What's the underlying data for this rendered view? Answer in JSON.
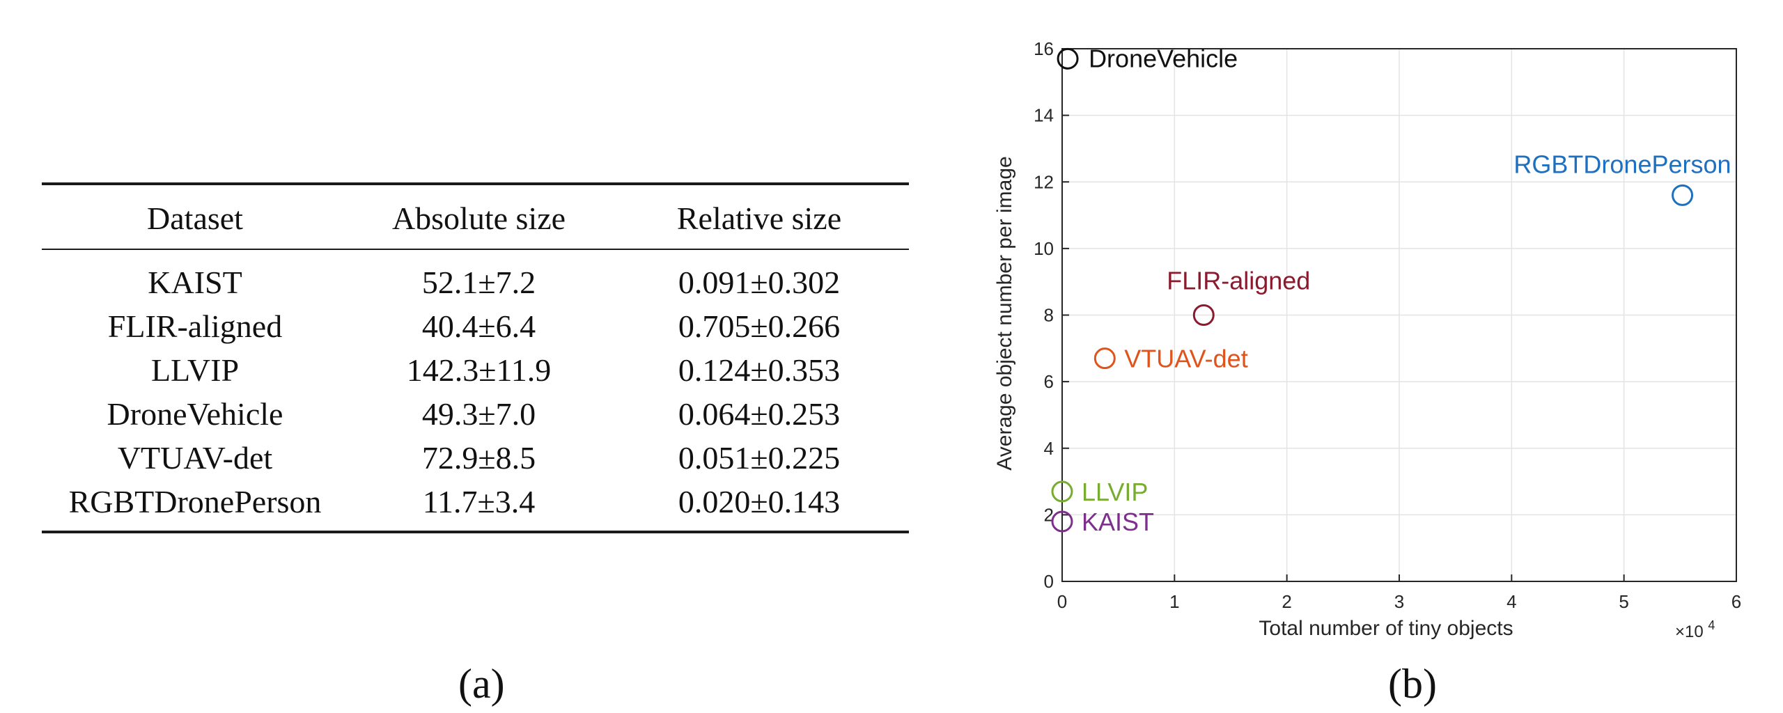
{
  "table": {
    "columns": [
      "Dataset",
      "Absolute size",
      "Relative size"
    ],
    "rows": [
      [
        "KAIST",
        "52.1±7.2",
        "0.091±0.302"
      ],
      [
        "FLIR-aligned",
        "40.4±6.4",
        "0.705±0.266"
      ],
      [
        "LLVIP",
        "142.3±11.9",
        "0.124±0.353"
      ],
      [
        "DroneVehicle",
        "49.3±7.0",
        "0.064±0.253"
      ],
      [
        "VTUAV-det",
        "72.9±8.5",
        "0.051±0.225"
      ],
      [
        "RGBTDronePerson",
        "11.7±3.4",
        "0.020±0.143"
      ]
    ]
  },
  "captions": {
    "a": "(a)",
    "b": "(b)"
  },
  "chart_data": {
    "type": "scatter",
    "xlabel": "Total number of tiny objects",
    "ylabel": "Average object number per image",
    "x_multiplier_label": "×10",
    "x_multiplier_exponent": "4",
    "xlim": [
      0,
      6
    ],
    "ylim": [
      0,
      16
    ],
    "x_ticks": [
      0,
      1,
      2,
      3,
      4,
      5,
      6
    ],
    "y_ticks": [
      0,
      2,
      4,
      6,
      8,
      10,
      12,
      14,
      16
    ],
    "grid": true,
    "marker": "open-circle",
    "points": [
      {
        "label": "DroneVehicle",
        "x": 0.05,
        "y": 15.7,
        "color": "#111111"
      },
      {
        "label": "RGBTDronePerson",
        "x": 5.52,
        "y": 11.6,
        "color": "#1f6fbf"
      },
      {
        "label": "FLIR-aligned",
        "x": 1.26,
        "y": 8.0,
        "color": "#8b1a2e"
      },
      {
        "label": "VTUAV-det",
        "x": 0.38,
        "y": 6.7,
        "color": "#e0531b"
      },
      {
        "label": "LLVIP",
        "x": 0.0,
        "y": 2.7,
        "color": "#77ac30"
      },
      {
        "label": "KAIST",
        "x": 0.0,
        "y": 1.8,
        "color": "#7e2f8e"
      }
    ]
  }
}
